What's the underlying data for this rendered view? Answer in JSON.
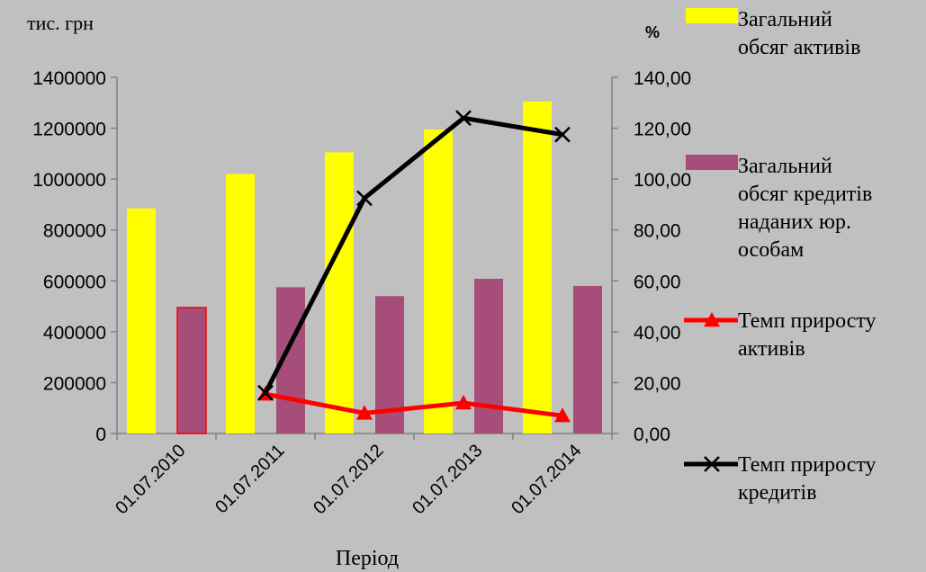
{
  "chart_data": {
    "type": "bar",
    "categories": [
      "01.07.2010",
      "01.07.2011",
      "01.07.2012",
      "01.07.2013",
      "01.07.2014"
    ],
    "xlabel": "Період",
    "ylabel_left": "тис. грн",
    "ylabel_right": "%",
    "ylim_left": [
      0,
      1400000
    ],
    "ylim_right": [
      0,
      140
    ],
    "yticks_left": [
      "0",
      "200000",
      "400000",
      "600000",
      "800000",
      "1000000",
      "1200000",
      "1400000"
    ],
    "yticks_right": [
      "0,00",
      "20,00",
      "40,00",
      "60,00",
      "80,00",
      "100,00",
      "120,00",
      "140,00"
    ],
    "grid": false,
    "legend_position": "right",
    "series": [
      {
        "name": "Загальний обсяг активів",
        "legend_lines": [
          "Загальний",
          "обсяг активів"
        ],
        "kind": "bar",
        "axis": "left",
        "color": "#ffff00",
        "values": [
          885000,
          1020000,
          1105000,
          1195000,
          1305000
        ]
      },
      {
        "name": "Загальний обсяг кредитів наданих юр. особам",
        "legend_lines": [
          "Загальний",
          "обсяг кредитів",
          "наданих юр.",
          "особам"
        ],
        "kind": "bar",
        "axis": "left",
        "color": "#a64d79",
        "values": [
          495000,
          575000,
          540000,
          608000,
          580000
        ]
      },
      {
        "name": "Темп приросту активів",
        "legend_lines": [
          "Темп приросту",
          "активів"
        ],
        "kind": "line",
        "axis": "right",
        "color": "#ff0000",
        "marker": "triangle",
        "values": [
          null,
          15.5,
          8.0,
          12.0,
          7.0
        ]
      },
      {
        "name": "Темп приросту кредитів",
        "legend_lines": [
          "Темп приросту",
          "кредитів"
        ],
        "kind": "line",
        "axis": "right",
        "color": "#000000",
        "marker": "x",
        "values": [
          null,
          16.0,
          92.5,
          124.0,
          117.5
        ]
      }
    ]
  }
}
